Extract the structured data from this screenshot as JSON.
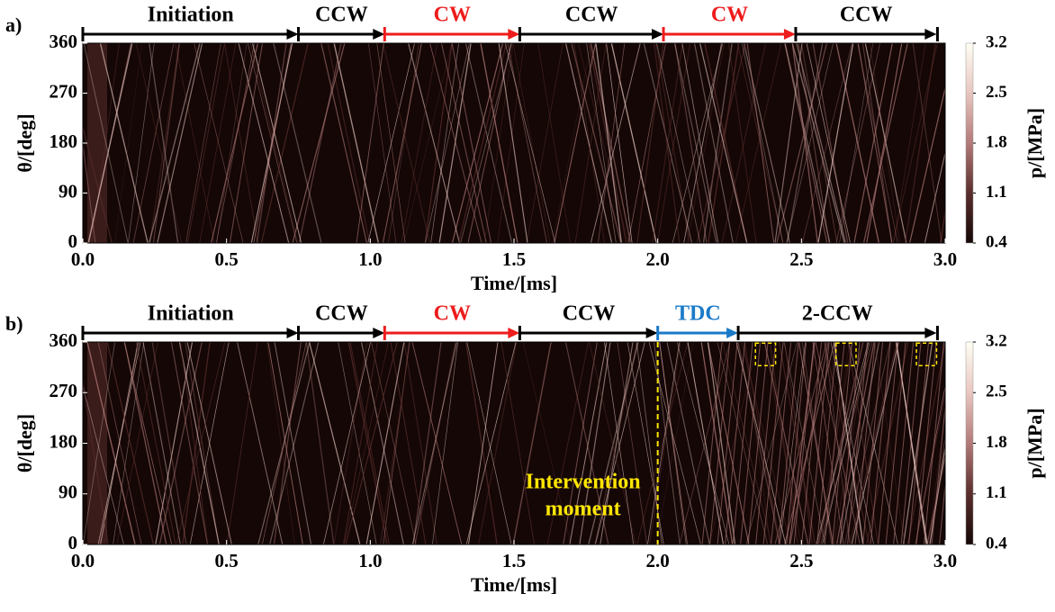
{
  "chart_data": [
    {
      "type": "heatmap",
      "panel_label": "a)",
      "xlabel": "Time/[ms]",
      "ylabel": "θ/[deg]",
      "xlim": [
        0,
        3
      ],
      "ylim": [
        0,
        360
      ],
      "xticks": [
        {
          "value": 0,
          "label": "0.0"
        },
        0.5,
        {
          "value": 1,
          "label": "1.0"
        },
        1.5,
        {
          "value": 2,
          "label": "2.0"
        },
        2.5,
        {
          "value": 3,
          "label": "3.0"
        }
      ],
      "yticks": [
        0,
        90,
        180,
        270,
        360
      ],
      "colorbar": {
        "label": "p/[MPa]",
        "lim": [
          0.4,
          3.2
        ],
        "ticks": [
          0.4,
          1.1,
          1.8,
          2.5,
          3.2
        ],
        "colors": [
          "#140706",
          "#5a2e2c",
          "#b27a78",
          "#e8c6c0",
          "#fffff4"
        ]
      },
      "phases": [
        {
          "name": "Initiation",
          "start": 0,
          "end": 0.75,
          "color": "#000000"
        },
        {
          "name": "CCW",
          "start": 0.75,
          "end": 1.05,
          "color": "#000000"
        },
        {
          "name": "CW",
          "start": 1.05,
          "end": 1.52,
          "color": "#ee1c1c"
        },
        {
          "name": "CCW",
          "start": 1.52,
          "end": 2.02,
          "color": "#000000"
        },
        {
          "name": "CW",
          "start": 2.02,
          "end": 2.48,
          "color": "#ee1c1c"
        },
        {
          "name": "CCW",
          "start": 2.48,
          "end": 2.97,
          "color": "#000000"
        }
      ]
    },
    {
      "type": "heatmap",
      "panel_label": "b)",
      "xlabel": "Time/[ms]",
      "ylabel": "θ/[deg]",
      "xlim": [
        0,
        3
      ],
      "ylim": [
        0,
        360
      ],
      "xticks": [
        {
          "value": 0,
          "label": "0.0"
        },
        0.5,
        {
          "value": 1,
          "label": "1.0"
        },
        1.5,
        {
          "value": 2,
          "label": "2.0"
        },
        2.5,
        {
          "value": 3,
          "label": "3.0"
        }
      ],
      "yticks": [
        0,
        90,
        180,
        270,
        360
      ],
      "colorbar": {
        "label": "p/[MPa]",
        "lim": [
          0.4,
          3.2
        ],
        "ticks": [
          0.4,
          1.1,
          1.8,
          2.5,
          3.2
        ],
        "colors": [
          "#140706",
          "#5a2e2c",
          "#b27a78",
          "#e8c6c0",
          "#fffff4"
        ]
      },
      "phases": [
        {
          "name": "Initiation",
          "start": 0,
          "end": 0.75,
          "color": "#000000"
        },
        {
          "name": "CCW",
          "start": 0.75,
          "end": 1.05,
          "color": "#000000"
        },
        {
          "name": "CW",
          "start": 1.05,
          "end": 1.52,
          "color": "#ee1c1c"
        },
        {
          "name": "CCW",
          "start": 1.52,
          "end": 2.0,
          "color": "#000000"
        },
        {
          "name": "TDC",
          "start": 2.0,
          "end": 2.28,
          "color": "#1a7ac8"
        },
        {
          "name": "2-CCW",
          "start": 2.28,
          "end": 2.97,
          "color": "#000000"
        }
      ],
      "marker": {
        "x": 2.0,
        "color": "#ffe600",
        "text_lines": [
          "Intervention",
          "moment"
        ]
      },
      "highlight_boxes": [
        {
          "x": [
            2.34,
            2.41
          ],
          "y": [
            318,
            358
          ]
        },
        {
          "x": [
            2.62,
            2.69
          ],
          "y": [
            318,
            358
          ]
        },
        {
          "x": [
            2.9,
            2.97
          ],
          "y": [
            318,
            358
          ]
        }
      ]
    }
  ]
}
